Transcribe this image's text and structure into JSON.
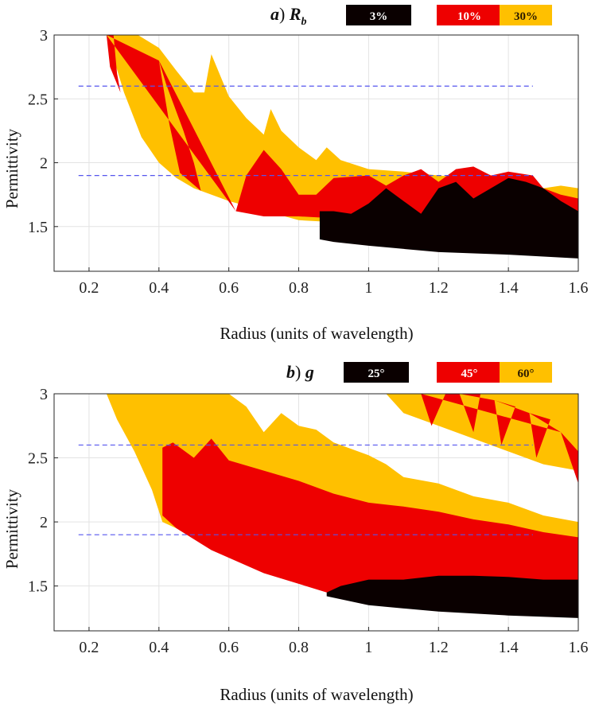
{
  "colors": {
    "black": "#0a0000",
    "red": "#ee0000",
    "yellow": "#ffc000",
    "dash": "#5555ee"
  },
  "chart_data": [
    {
      "type": "area",
      "title": "a) R_b",
      "title_prefix": "a",
      "title_symbol": "R",
      "title_subscript": "b",
      "xlabel": "Radius (units of wavelength)",
      "ylabel": "Permittivity",
      "xlim": [
        0.1,
        1.6
      ],
      "ylim": [
        1.15,
        3.0
      ],
      "xticks": [
        "0.2",
        "0.4",
        "0.6",
        "0.8",
        "1",
        "1.2",
        "1.4",
        "1.6"
      ],
      "yticks": [
        "1.5",
        "2",
        "2.5",
        "3"
      ],
      "grid": true,
      "legend_position": "top-right",
      "legend": [
        {
          "label": "3%",
          "color": "#0a0000",
          "text_color": "#ffffff"
        },
        {
          "label": "10%",
          "color": "#ee0000",
          "text_color": "#ffffff"
        },
        {
          "label": "30%",
          "color": "#ffc000",
          "text_color": "#2a1a00"
        }
      ],
      "reference_lines": [
        {
          "y": 2.6,
          "x": [
            0.17,
            1.47
          ]
        },
        {
          "y": 1.9,
          "x": [
            0.17,
            1.47
          ]
        }
      ],
      "series": [
        {
          "name": "30%",
          "color": "#ffc000",
          "polygon": [
            [
              0.25,
              3.0
            ],
            [
              0.34,
              3.0
            ],
            [
              0.4,
              2.9
            ],
            [
              0.45,
              2.72
            ],
            [
              0.5,
              2.55
            ],
            [
              0.53,
              2.55
            ],
            [
              0.55,
              2.85
            ],
            [
              0.6,
              2.52
            ],
            [
              0.65,
              2.35
            ],
            [
              0.7,
              2.22
            ],
            [
              0.72,
              2.42
            ],
            [
              0.75,
              2.25
            ],
            [
              0.8,
              2.12
            ],
            [
              0.85,
              2.02
            ],
            [
              0.88,
              2.12
            ],
            [
              0.92,
              2.02
            ],
            [
              1.0,
              1.95
            ],
            [
              1.1,
              1.93
            ],
            [
              1.2,
              1.9
            ],
            [
              1.3,
              1.88
            ],
            [
              1.4,
              1.87
            ],
            [
              1.47,
              1.85
            ],
            [
              1.5,
              1.8
            ],
            [
              1.55,
              1.82
            ],
            [
              1.6,
              1.8
            ],
            [
              1.6,
              1.48
            ],
            [
              1.3,
              1.5
            ],
            [
              1.0,
              1.52
            ],
            [
              0.8,
              1.55
            ],
            [
              0.6,
              1.7
            ],
            [
              0.5,
              1.8
            ],
            [
              0.45,
              1.88
            ],
            [
              0.4,
              2.0
            ],
            [
              0.35,
              2.2
            ],
            [
              0.3,
              2.55
            ],
            [
              0.25,
              3.0
            ]
          ]
        },
        {
          "name": "10%",
          "color": "#ee0000",
          "polygon": [
            [
              0.25,
              3.0
            ],
            [
              0.27,
              3.0
            ],
            [
              0.28,
              2.7
            ],
            [
              0.29,
              2.55
            ],
            [
              0.26,
              2.75
            ],
            [
              0.25,
              3.0
            ],
            [
              0.4,
              2.8
            ],
            [
              0.42,
              2.62
            ],
            [
              0.47,
              2.25
            ],
            [
              0.5,
              2.0
            ],
            [
              0.52,
              1.78
            ],
            [
              0.46,
              1.92
            ],
            [
              0.43,
              2.3
            ],
            [
              0.4,
              2.8
            ],
            [
              0.62,
              1.62
            ],
            [
              0.65,
              1.9
            ],
            [
              0.7,
              2.1
            ],
            [
              0.75,
              1.95
            ],
            [
              0.8,
              1.75
            ],
            [
              0.85,
              1.75
            ],
            [
              0.9,
              1.88
            ],
            [
              1.0,
              1.9
            ],
            [
              1.05,
              1.82
            ],
            [
              1.1,
              1.9
            ],
            [
              1.15,
              1.95
            ],
            [
              1.2,
              1.85
            ],
            [
              1.25,
              1.95
            ],
            [
              1.3,
              1.97
            ],
            [
              1.35,
              1.9
            ],
            [
              1.4,
              1.93
            ],
            [
              1.47,
              1.9
            ],
            [
              1.5,
              1.8
            ],
            [
              1.55,
              1.75
            ],
            [
              1.6,
              1.72
            ],
            [
              1.6,
              1.5
            ],
            [
              1.3,
              1.52
            ],
            [
              1.0,
              1.55
            ],
            [
              0.8,
              1.58
            ],
            [
              0.7,
              1.58
            ],
            [
              0.62,
              1.62
            ]
          ]
        },
        {
          "name": "3%",
          "color": "#0a0000",
          "polygon": [
            [
              0.86,
              1.62
            ],
            [
              0.9,
              1.62
            ],
            [
              0.95,
              1.6
            ],
            [
              1.0,
              1.68
            ],
            [
              1.05,
              1.8
            ],
            [
              1.1,
              1.7
            ],
            [
              1.15,
              1.6
            ],
            [
              1.2,
              1.8
            ],
            [
              1.25,
              1.85
            ],
            [
              1.3,
              1.72
            ],
            [
              1.35,
              1.8
            ],
            [
              1.4,
              1.88
            ],
            [
              1.45,
              1.85
            ],
            [
              1.5,
              1.8
            ],
            [
              1.55,
              1.7
            ],
            [
              1.6,
              1.62
            ],
            [
              1.6,
              1.25
            ],
            [
              1.4,
              1.28
            ],
            [
              1.2,
              1.3
            ],
            [
              1.0,
              1.35
            ],
            [
              0.9,
              1.38
            ],
            [
              0.86,
              1.4
            ]
          ]
        }
      ]
    },
    {
      "type": "area",
      "title": "b) g",
      "title_prefix": "b",
      "title_symbol": "g",
      "title_subscript": "",
      "xlabel": "Radius (units of wavelength)",
      "ylabel": "Permittivity",
      "xlim": [
        0.1,
        1.6
      ],
      "ylim": [
        1.15,
        3.0
      ],
      "xticks": [
        "0.2",
        "0.4",
        "0.6",
        "0.8",
        "1",
        "1.2",
        "1.4",
        "1.6"
      ],
      "yticks": [
        "1.5",
        "2",
        "2.5",
        "3"
      ],
      "grid": true,
      "legend_position": "top-right",
      "legend": [
        {
          "label": "25°",
          "color": "#0a0000",
          "text_color": "#ffffff"
        },
        {
          "label": "45°",
          "color": "#ee0000",
          "text_color": "#ffffff"
        },
        {
          "label": "60°",
          "color": "#ffc000",
          "text_color": "#2a1a00"
        }
      ],
      "reference_lines": [
        {
          "y": 2.6,
          "x": [
            0.17,
            1.47
          ]
        },
        {
          "y": 1.9,
          "x": [
            0.17,
            1.47
          ]
        }
      ],
      "series": [
        {
          "name": "60°",
          "color": "#ffc000",
          "polygon": [
            [
              0.25,
              3.0
            ],
            [
              0.6,
              3.0
            ],
            [
              0.65,
              2.9
            ],
            [
              0.7,
              2.7
            ],
            [
              0.75,
              2.85
            ],
            [
              0.8,
              2.75
            ],
            [
              0.85,
              2.72
            ],
            [
              0.9,
              2.62
            ],
            [
              1.0,
              2.52
            ],
            [
              1.05,
              2.45
            ],
            [
              1.1,
              2.35
            ],
            [
              1.2,
              2.3
            ],
            [
              1.3,
              2.2
            ],
            [
              1.4,
              2.15
            ],
            [
              1.5,
              2.05
            ],
            [
              1.6,
              2.0
            ],
            [
              1.6,
              1.8
            ],
            [
              1.5,
              1.8
            ],
            [
              1.4,
              1.85
            ],
            [
              1.3,
              1.9
            ],
            [
              1.2,
              1.92
            ],
            [
              1.1,
              1.95
            ],
            [
              1.0,
              1.95
            ],
            [
              0.9,
              2.05
            ],
            [
              0.8,
              2.15
            ],
            [
              0.6,
              2.05
            ],
            [
              0.45,
              1.95
            ],
            [
              0.41,
              2.0
            ],
            [
              0.38,
              2.25
            ],
            [
              0.33,
              2.55
            ],
            [
              0.28,
              2.8
            ],
            [
              0.25,
              3.0
            ]
          ]
        },
        {
          "name": "60° (upper)",
          "color": "#ffc000",
          "polygon": [
            [
              1.05,
              3.0
            ],
            [
              1.6,
              3.0
            ],
            [
              1.6,
              2.4
            ],
            [
              1.5,
              2.45
            ],
            [
              1.4,
              2.55
            ],
            [
              1.3,
              2.65
            ],
            [
              1.2,
              2.75
            ],
            [
              1.1,
              2.85
            ],
            [
              1.05,
              3.0
            ]
          ]
        },
        {
          "name": "45°",
          "color": "#ee0000",
          "polygon": [
            [
              0.41,
              2.58
            ],
            [
              0.44,
              2.62
            ],
            [
              0.5,
              2.5
            ],
            [
              0.55,
              2.65
            ],
            [
              0.6,
              2.48
            ],
            [
              0.7,
              2.4
            ],
            [
              0.8,
              2.32
            ],
            [
              0.9,
              2.22
            ],
            [
              1.0,
              2.15
            ],
            [
              1.1,
              2.12
            ],
            [
              1.2,
              2.08
            ],
            [
              1.3,
              2.02
            ],
            [
              1.4,
              1.98
            ],
            [
              1.5,
              1.92
            ],
            [
              1.6,
              1.88
            ],
            [
              1.6,
              1.5
            ],
            [
              1.4,
              1.5
            ],
            [
              1.2,
              1.52
            ],
            [
              1.0,
              1.52
            ],
            [
              0.88,
              1.45
            ],
            [
              0.7,
              1.6
            ],
            [
              0.55,
              1.78
            ],
            [
              0.45,
              1.95
            ],
            [
              0.41,
              2.05
            ]
          ]
        },
        {
          "name": "45° (upper)",
          "color": "#ee0000",
          "polygon": [
            [
              1.15,
              3.0
            ],
            [
              1.22,
              3.0
            ],
            [
              1.18,
              2.75
            ],
            [
              1.15,
              3.0
            ],
            [
              1.26,
              3.0
            ],
            [
              1.32,
              3.0
            ],
            [
              1.3,
              2.7
            ],
            [
              1.26,
              3.0
            ],
            [
              1.36,
              2.95
            ],
            [
              1.42,
              2.9
            ],
            [
              1.38,
              2.6
            ],
            [
              1.36,
              2.95
            ],
            [
              1.46,
              2.85
            ],
            [
              1.52,
              2.8
            ],
            [
              1.48,
              2.5
            ],
            [
              1.46,
              2.85
            ],
            [
              1.55,
              2.7
            ],
            [
              1.6,
              2.55
            ],
            [
              1.6,
              2.3
            ],
            [
              1.55,
              2.7
            ]
          ]
        },
        {
          "name": "25°",
          "color": "#0a0000",
          "polygon": [
            [
              0.88,
              1.45
            ],
            [
              0.92,
              1.5
            ],
            [
              1.0,
              1.55
            ],
            [
              1.1,
              1.55
            ],
            [
              1.2,
              1.58
            ],
            [
              1.3,
              1.58
            ],
            [
              1.4,
              1.57
            ],
            [
              1.5,
              1.55
            ],
            [
              1.6,
              1.55
            ],
            [
              1.6,
              1.25
            ],
            [
              1.4,
              1.27
            ],
            [
              1.2,
              1.3
            ],
            [
              1.0,
              1.35
            ],
            [
              0.88,
              1.42
            ]
          ]
        }
      ]
    }
  ]
}
